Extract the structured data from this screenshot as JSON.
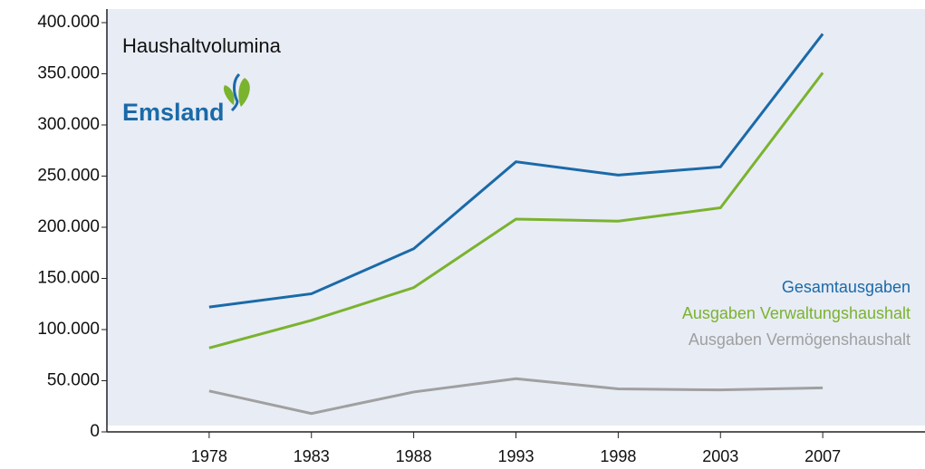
{
  "chart_data": {
    "type": "line",
    "title": "Haushaltvolumina",
    "logo": "Emsland",
    "categories": [
      "1978",
      "1983",
      "1988",
      "1993",
      "1998",
      "2003",
      "2007"
    ],
    "series": [
      {
        "name": "Gesamtausgaben",
        "color": "#1a6aa8",
        "values": [
          122000,
          135000,
          179000,
          264000,
          251000,
          259000,
          389000
        ]
      },
      {
        "name": "Ausgaben Verwaltungshaushalt",
        "color": "#7ab32e",
        "values": [
          82000,
          109000,
          141000,
          208000,
          206000,
          219000,
          351000
        ]
      },
      {
        "name": "Ausgaben Vermögenshaushalt",
        "color": "#a0a0a0",
        "values": [
          40000,
          18000,
          39000,
          52000,
          42000,
          41000,
          43000
        ]
      }
    ],
    "ylim": [
      0,
      400000
    ],
    "yticks": [
      0,
      {
        "value": 50000,
        "label": "50.000"
      },
      {
        "value": 100000,
        "label": "100.000"
      },
      {
        "value": 150000,
        "label": "150.000"
      },
      {
        "value": 200000,
        "label": "200.000"
      },
      {
        "value": 250000,
        "label": "250.000"
      },
      {
        "value": 300000,
        "label": "300.000"
      },
      {
        "value": 350000,
        "label": "350.000"
      },
      {
        "value": 400000,
        "label": "400.000"
      }
    ],
    "legend": "right",
    "background": "#e8ecf5"
  }
}
